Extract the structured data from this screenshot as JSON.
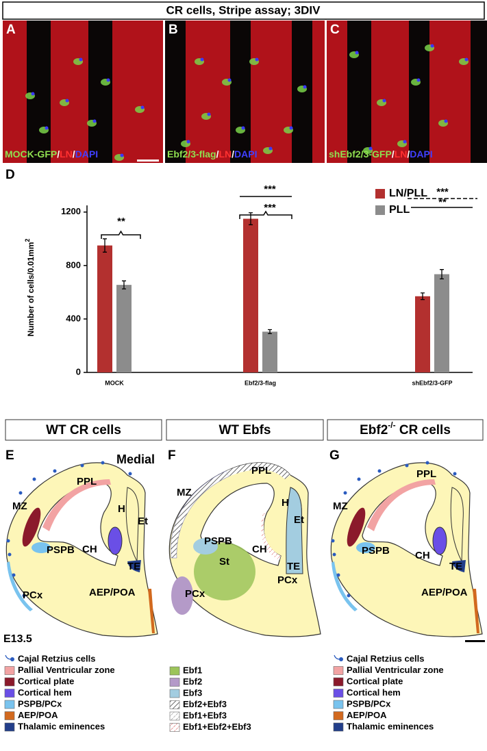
{
  "header": {
    "title": "CR cells, Stripe assay; 3DIV"
  },
  "image_panels": [
    {
      "letter": "A",
      "caption_parts": [
        {
          "text": "MOCK-GFP",
          "color": "#8fe050"
        },
        {
          "text": "/",
          "color": "#ffffff"
        },
        {
          "text": "LN",
          "color": "#ff3030"
        },
        {
          "text": "/",
          "color": "#ffffff"
        },
        {
          "text": "DAPI",
          "color": "#4040ff"
        }
      ]
    },
    {
      "letter": "B",
      "caption_parts": [
        {
          "text": "Ebf2/3-flag",
          "color": "#8fe050"
        },
        {
          "text": "/",
          "color": "#ffffff"
        },
        {
          "text": "LN",
          "color": "#ff3030"
        },
        {
          "text": "/",
          "color": "#ffffff"
        },
        {
          "text": "DAPI",
          "color": "#4040ff"
        }
      ]
    },
    {
      "letter": "C",
      "caption_parts": [
        {
          "text": "shEbf2/3-GFP",
          "color": "#8fe050"
        },
        {
          "text": "/",
          "color": "#ffffff"
        },
        {
          "text": "LN",
          "color": "#ff3030"
        },
        {
          "text": "/",
          "color": "#ffffff"
        },
        {
          "text": "DAPI",
          "color": "#4040ff"
        }
      ]
    }
  ],
  "chart_data": {
    "type": "bar",
    "panel_label": "D",
    "y_label": "Number of cells/0.01mm",
    "y_label_sup": "2",
    "categories": [
      "MOCK",
      "Ebf2/3-flag",
      "shEbf2/3-GFP"
    ],
    "series": [
      {
        "name": "LN/PLL",
        "color": "#b3302f",
        "values": [
          950,
          1150,
          570
        ],
        "errors": [
          50,
          45,
          25
        ]
      },
      {
        "name": "PLL",
        "color": "#8c8c8c",
        "values": [
          655,
          305,
          735
        ],
        "errors": [
          30,
          15,
          35
        ]
      }
    ],
    "ylim": [
      0,
      1250
    ],
    "yticks": [
      0,
      400,
      800,
      1200
    ],
    "annotations": [
      {
        "text": "**"
      },
      {
        "text": "***"
      },
      {
        "text": "***"
      },
      {
        "text": "***",
        "dashed": true
      },
      {
        "text": "**"
      }
    ]
  },
  "diagram_headers": [
    {
      "parts": [
        "WT CR cells"
      ]
    },
    {
      "parts": [
        "WT Ebfs"
      ]
    },
    {
      "parts": [
        "Ebf2",
        "-/-",
        " CR cells"
      ]
    }
  ],
  "diagrams": [
    {
      "letter": "E",
      "labels": [
        "Medial",
        "PPL",
        "MZ",
        "H",
        "Et",
        "CH",
        "PSPB",
        "TE",
        "PCx",
        "AEP/POA"
      ]
    },
    {
      "letter": "F",
      "labels": [
        "PPL",
        "MZ",
        "H",
        "Et",
        "CH",
        "PSPB",
        "St",
        "TE",
        "PCx",
        "PCx"
      ]
    },
    {
      "letter": "G",
      "labels": [
        "PPL",
        "MZ",
        "CH",
        "PSPB",
        "TE",
        "AEP/POA"
      ]
    }
  ],
  "stage": "E13.5",
  "legends": [
    {
      "items": [
        {
          "label": "Cajal Retzius cells",
          "icon": "cell",
          "color": "#2a5bbf"
        },
        {
          "label": "Pallial Ventricular zone",
          "color": "#f2a3a3"
        },
        {
          "label": "Cortical plate",
          "color": "#8b1a2b"
        },
        {
          "label": "Cortical hem",
          "color": "#6a4fe6"
        },
        {
          "label": "PSPB/PCx",
          "color": "#79c3ee"
        },
        {
          "label": "AEP/POA",
          "color": "#d2691e"
        },
        {
          "label": "Thalamic eminences",
          "color": "#223e8a"
        }
      ]
    },
    {
      "items": [
        {
          "label": "Ebf1",
          "color": "#9cc45a"
        },
        {
          "label": "Ebf2",
          "color": "#b49ac8"
        },
        {
          "label": "Ebf3",
          "color": "#a3cde0"
        },
        {
          "label": "Ebf2+Ebf3",
          "pattern": "hatch-dark"
        },
        {
          "label": "Ebf1+Ebf3",
          "pattern": "hatch-light"
        },
        {
          "label": "Ebf1+Ebf2+Ebf3",
          "pattern": "hatch-red"
        }
      ]
    },
    {
      "items": [
        {
          "label": "Cajal Retzius cells",
          "icon": "cell",
          "color": "#2a5bbf"
        },
        {
          "label": "Pallial Ventricular zone",
          "color": "#f2a3a3"
        },
        {
          "label": "Cortical plate",
          "color": "#8b1a2b"
        },
        {
          "label": "Cortical hem",
          "color": "#6a4fe6"
        },
        {
          "label": "PSPB/PCx",
          "color": "#79c3ee"
        },
        {
          "label": "AEP/POA",
          "color": "#d2691e"
        },
        {
          "label": "Thalamic eminences",
          "color": "#223e8a"
        }
      ]
    }
  ]
}
